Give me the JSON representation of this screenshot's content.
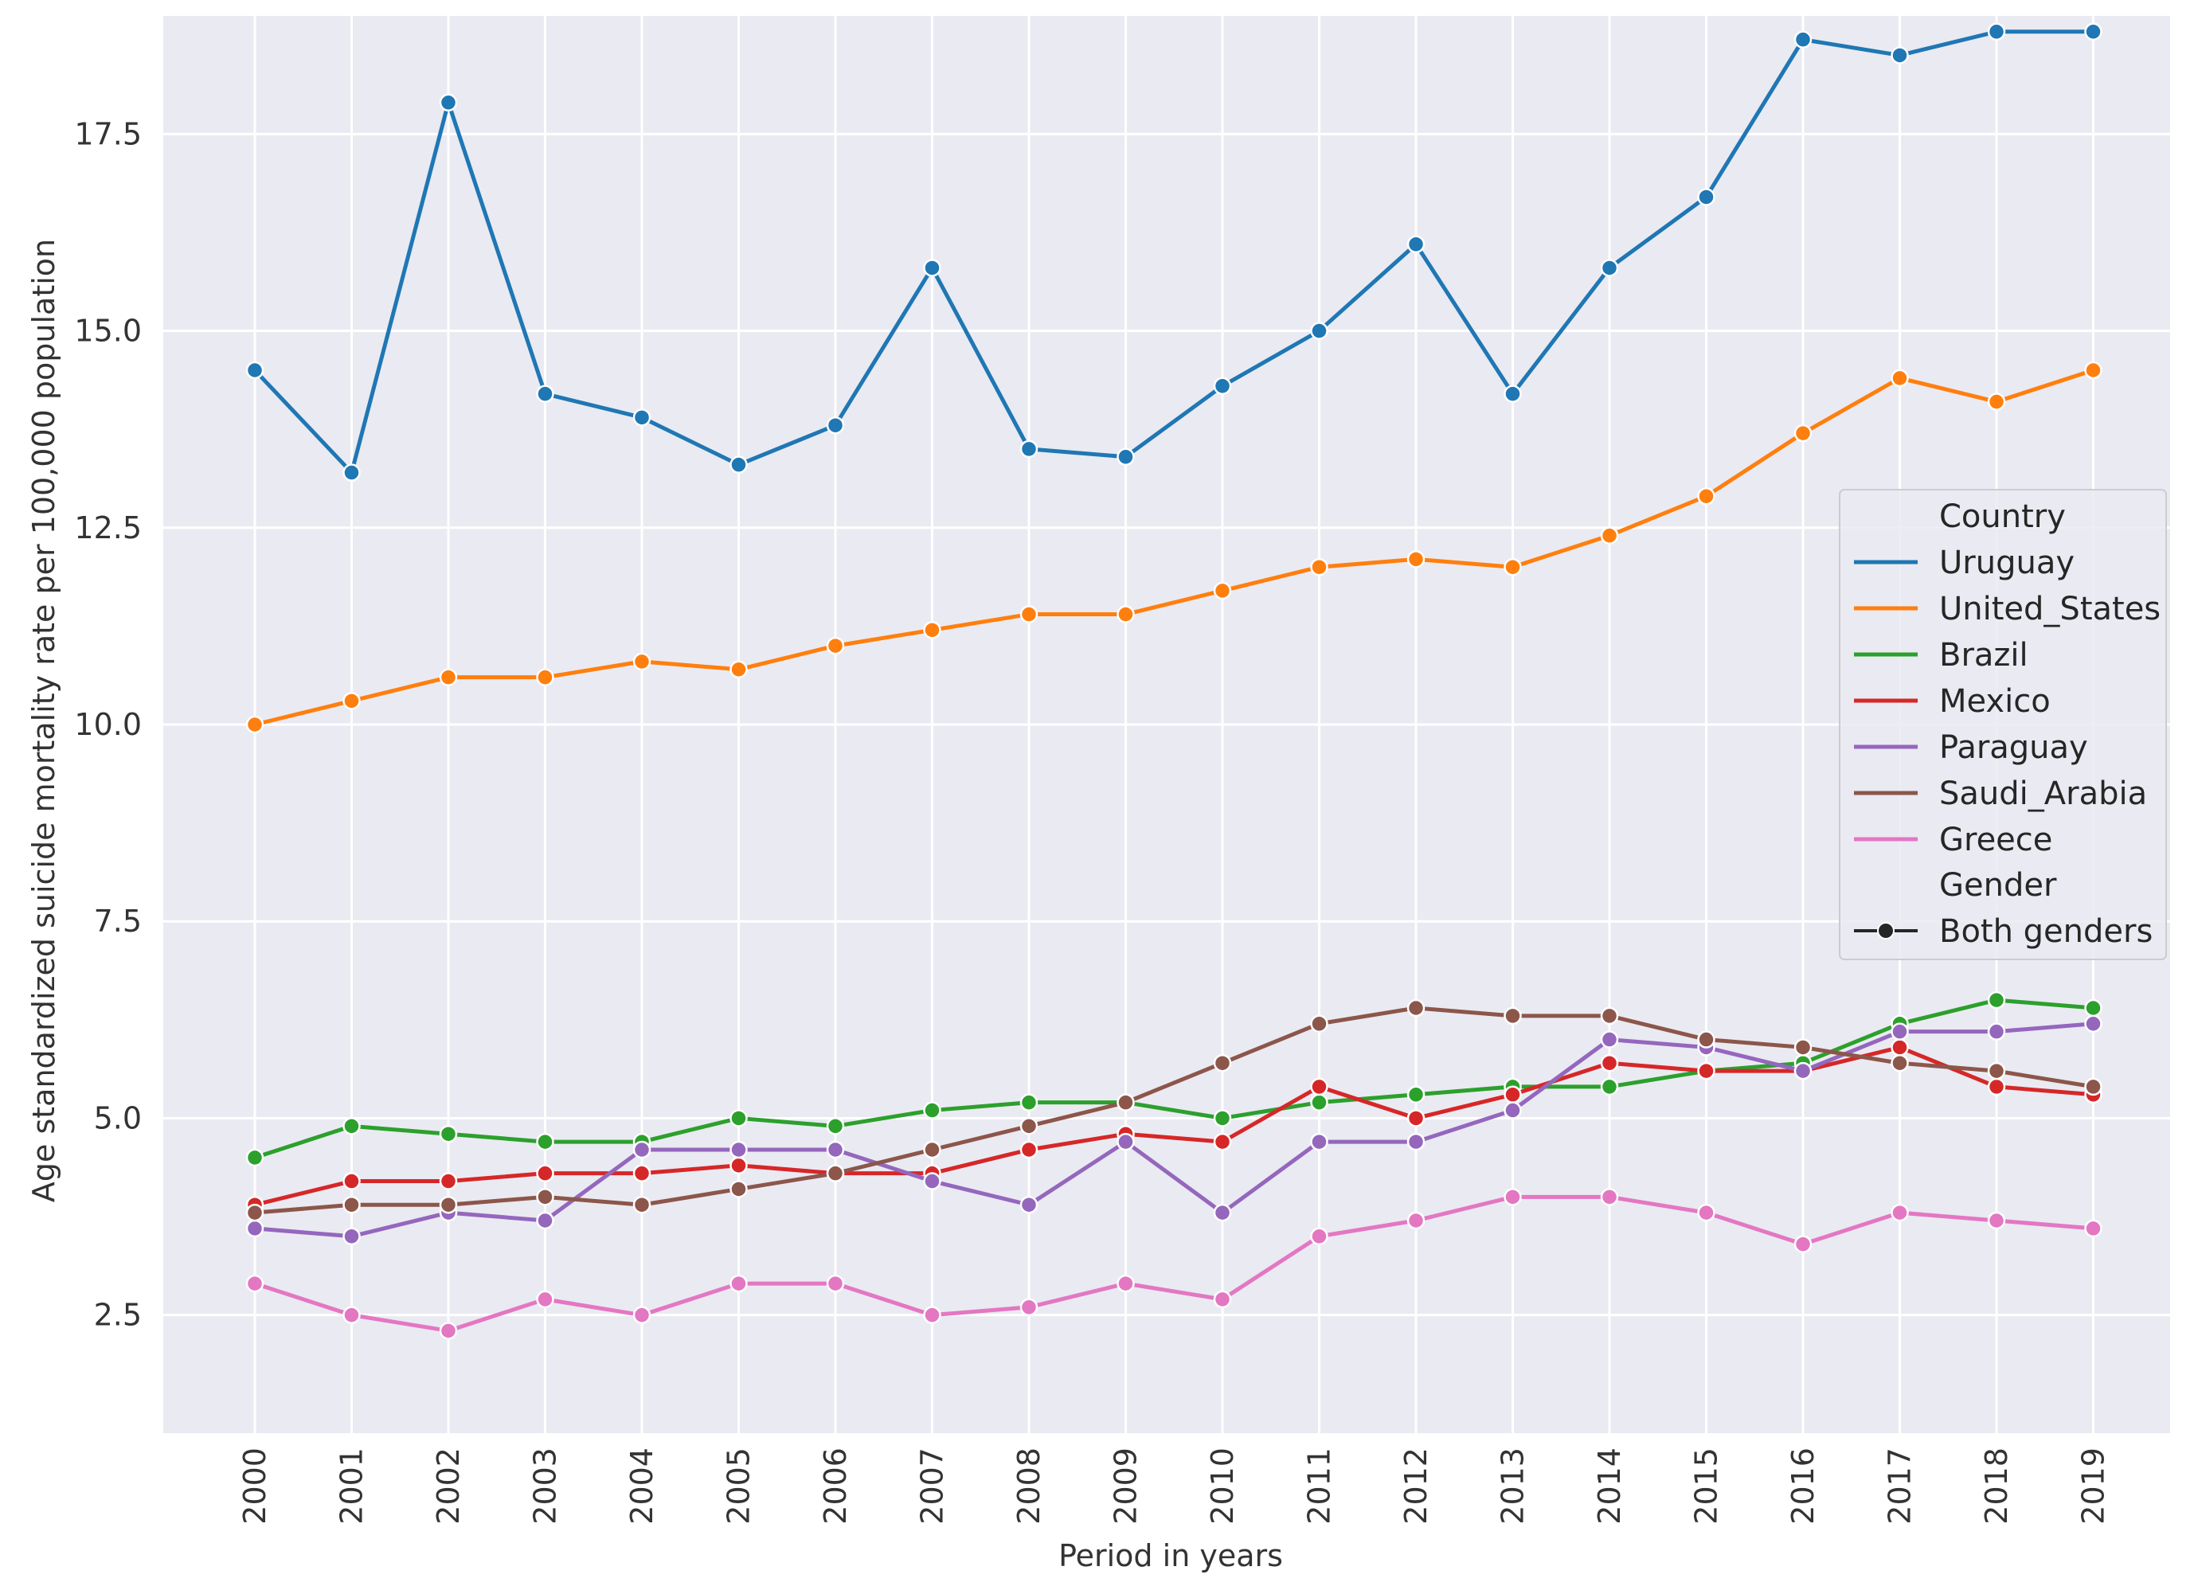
{
  "chart_data": {
    "type": "line",
    "title": "",
    "xlabel": "Period in years",
    "ylabel": "Age standardized suicide mortality rate per 100,000 population",
    "x": [
      2000,
      2001,
      2002,
      2003,
      2004,
      2005,
      2006,
      2007,
      2008,
      2009,
      2010,
      2011,
      2012,
      2013,
      2014,
      2015,
      2016,
      2017,
      2018,
      2019
    ],
    "x_tick_labels": [
      "2000",
      "2001",
      "2002",
      "2003",
      "2004",
      "2005",
      "2006",
      "2007",
      "2008",
      "2009",
      "2010",
      "2011",
      "2012",
      "2013",
      "2014",
      "2015",
      "2016",
      "2017",
      "2018",
      "2019"
    ],
    "ylim": [
      1.0,
      19.0
    ],
    "y_ticks": [
      2.5,
      5.0,
      7.5,
      10.0,
      12.5,
      15.0,
      17.5
    ],
    "y_tick_labels": [
      "2.5",
      "5.0",
      "7.5",
      "10.0",
      "12.5",
      "15.0",
      "17.5"
    ],
    "grid": true,
    "legend": {
      "placement": "center-right",
      "country_title": "Country",
      "gender_title": "Gender",
      "gender_entry": "Both genders",
      "gender_color": "#262626"
    },
    "series": [
      {
        "name": "Uruguay",
        "color": "#1f77b4",
        "values": [
          14.5,
          13.2,
          17.9,
          14.2,
          13.9,
          13.3,
          13.8,
          15.8,
          13.5,
          13.4,
          14.3,
          15.0,
          16.1,
          14.2,
          15.8,
          16.7,
          18.7,
          18.5,
          18.8,
          18.8
        ]
      },
      {
        "name": "United_States",
        "color": "#ff7f0e",
        "values": [
          10.0,
          10.3,
          10.6,
          10.6,
          10.8,
          10.7,
          11.0,
          11.2,
          11.4,
          11.4,
          11.7,
          12.0,
          12.1,
          12.0,
          12.4,
          12.9,
          13.7,
          14.4,
          14.1,
          14.5
        ]
      },
      {
        "name": "Brazil",
        "color": "#2ca02c",
        "values": [
          4.5,
          4.9,
          4.8,
          4.7,
          4.7,
          5.0,
          4.9,
          5.1,
          5.2,
          5.2,
          5.0,
          5.2,
          5.3,
          5.4,
          5.4,
          5.6,
          5.7,
          6.2,
          6.5,
          6.4
        ]
      },
      {
        "name": "Mexico",
        "color": "#d62728",
        "values": [
          3.9,
          4.2,
          4.2,
          4.3,
          4.3,
          4.4,
          4.3,
          4.3,
          4.6,
          4.8,
          4.7,
          5.4,
          5.0,
          5.3,
          5.7,
          5.6,
          5.6,
          5.9,
          5.4,
          5.3
        ]
      },
      {
        "name": "Paraguay",
        "color": "#9467bd",
        "values": [
          3.6,
          3.5,
          3.8,
          3.7,
          4.6,
          4.6,
          4.6,
          4.2,
          3.9,
          4.7,
          3.8,
          4.7,
          4.7,
          5.1,
          6.0,
          5.9,
          5.6,
          6.1,
          6.1,
          6.2
        ]
      },
      {
        "name": "Saudi_Arabia",
        "color": "#8c564b",
        "values": [
          3.8,
          3.9,
          3.9,
          4.0,
          3.9,
          4.1,
          4.3,
          4.6,
          4.9,
          5.2,
          5.7,
          6.2,
          6.4,
          6.3,
          6.3,
          6.0,
          5.9,
          5.7,
          5.6,
          5.4
        ]
      },
      {
        "name": "Greece",
        "color": "#e377c2",
        "values": [
          2.9,
          2.5,
          2.3,
          2.7,
          2.5,
          2.9,
          2.9,
          2.5,
          2.6,
          2.9,
          2.7,
          3.5,
          3.7,
          4.0,
          4.0,
          3.8,
          3.4,
          3.8,
          3.7,
          3.6
        ]
      }
    ]
  }
}
